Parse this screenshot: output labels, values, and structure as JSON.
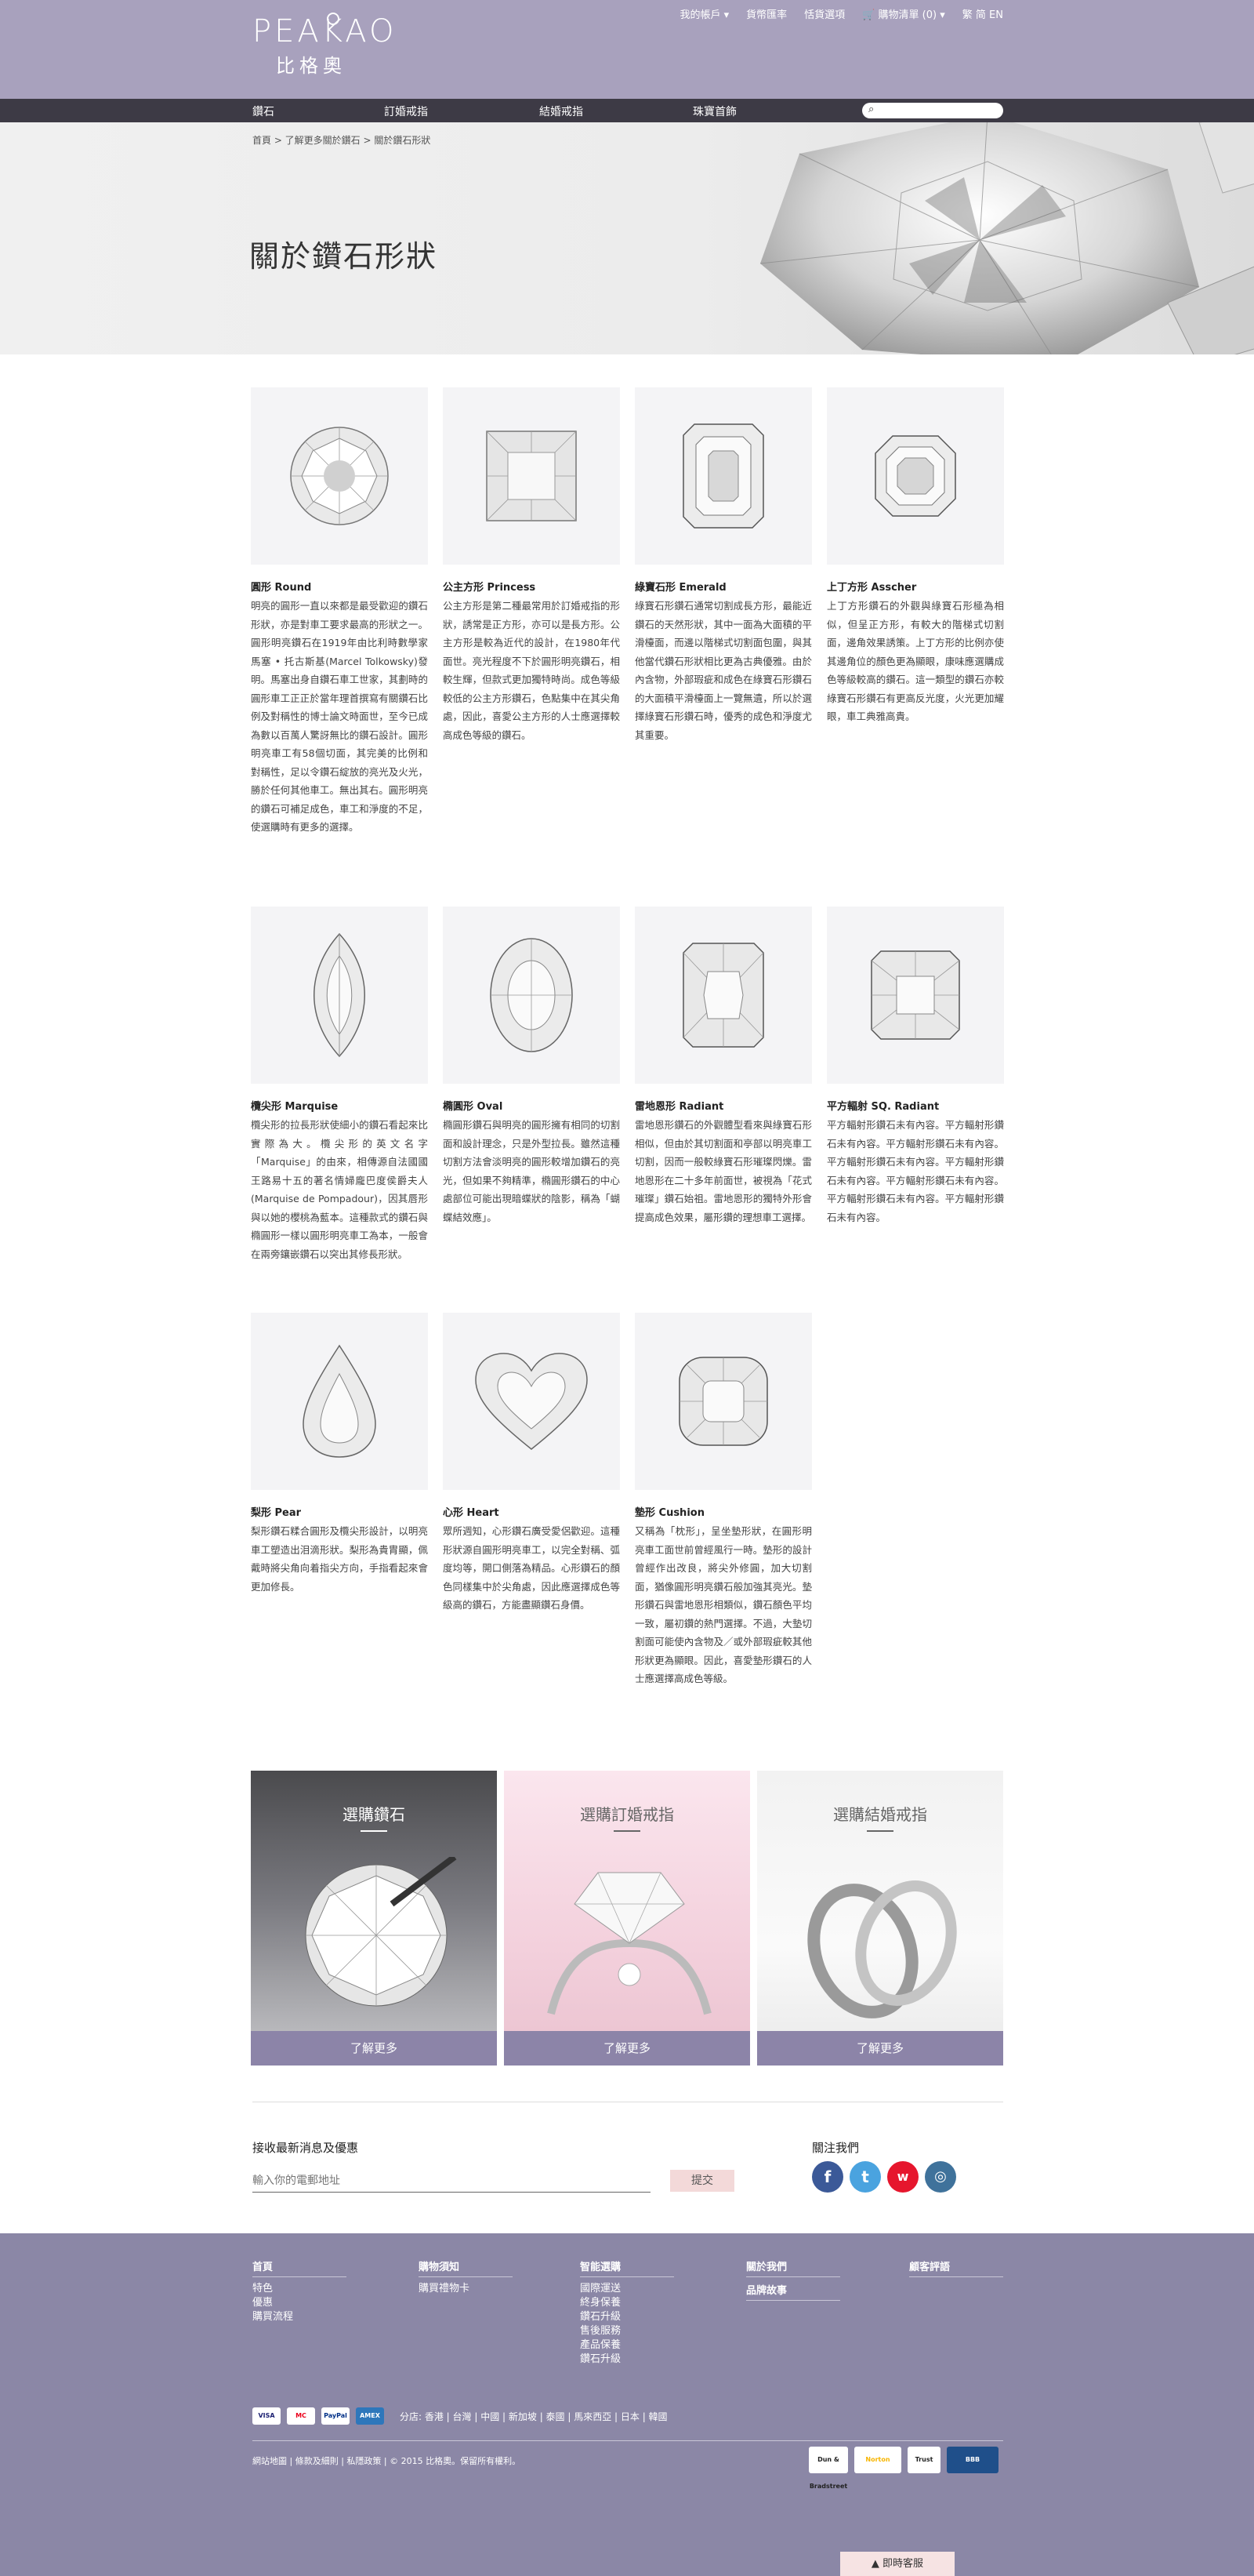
{
  "header": {
    "logo_en": "PEAKAO",
    "logo_cn": "比格奧",
    "toplinks": {
      "account": "我的帳戶 ▾",
      "help": "貨幣匯率",
      "chat": "恬貨選項",
      "cart": "購物清單 (0) ▾",
      "lang_zh": "繁",
      "lang_cn": "简",
      "lang_en": "EN"
    }
  },
  "nav": {
    "items": [
      "鑽石",
      "訂婚戒指",
      "結婚戒指",
      "珠寶首飾"
    ],
    "search_placeholder": ""
  },
  "hero": {
    "breadcrumb": "首頁  >  了解更多關於鑽石  >  關於鑽石形狀",
    "title": "關於鑽石形狀"
  },
  "shapes": [
    {
      "title": "圓形 Round",
      "desc": "明亮的圓形一直以來都是最受歡迎的鑽石形狀，亦是對車工要求最高的形狀之一。圓形明亮鑽石在1919年由比利時數學家馬塞 • 托古斯基(Marcel Tolkowsky)發明。馬塞出身自鑽石車工世家，其劃時的圓形車工正正於當年理首撰寫有關鑽石比例及對稱性的博士論文時面世，至今已成為數以百萬人驚訝無比的鑽石設計。圓形明亮車工有58個切面，其完美的比例和對稱性，足以令鑽石綻放的亮光及火光，勝於任何其他車工。無出其右。圓形明亮的鑽石可補足成色，車工和淨度的不足，使選購時有更多的選擇。",
      "icon": "round-diamond"
    },
    {
      "title": "公主方形 Princess",
      "desc": "公主方形是第二種最常用於訂婚戒指的形狀，誘常是正方形，亦可以是長方形。公主方形是較為近代的設計，在1980年代面世。亮光程度不下於圓形明亮鑽石，相較生輝，但款式更加獨特時尚。成色等級較低的公主方形鑽石，色點集中在其尖角處，因此，喜愛公主方形的人士應選擇較高成色等級的鑽石。",
      "icon": "princess-diamond"
    },
    {
      "title": "綠寶石形 Emerald",
      "desc": "綠寶石形鑽石通常切割成長方形，最能近鑽石的天然形狀，其中一面為大面積的平滑檯面，而邊以階梯式切割面包圍，與其他當代鑽石形狀相比更為古典優雅。由於內含物，外部瑕疵和成色在綠寶石形鑽石的大面積平滑檯面上一覽無遺，所以於選擇綠寶石形鑽石時，優秀的成色和淨度尤其重要。",
      "icon": "emerald-diamond"
    },
    {
      "title": "上丁方形 Asscher",
      "desc": "上丁方形鑽石的外觀與綠寶石形極為相似，但呈正方形，有較大的階梯式切割面，邊角效果誘策。上丁方形的比例亦使其邊角位的顏色更為顯眼，康味應選購成色等級較高的鑽石。這一類型的鑽石亦較綠寶石形鑽石有更高反光度，火光更加耀眼，車工典雅高貴。",
      "icon": "asscher-diamond"
    },
    {
      "title": "欖尖形 Marquise",
      "desc": "欖尖形的拉長形狀使細小的鑽石看起來比實際為大。欖尖形的英文名字「Marquise」的由來，相傳源自法國國王路易十五的著名情婦龐巴度侯爵夫人(Marquise de Pompadour)，因其唇形與以她的櫻桃為藍本。這種款式的鑽石與橢圓形一樣以圓形明亮車工為本，一般會在兩旁鑲嵌鑽石以突出其修長形狀。",
      "icon": "marquise-diamond"
    },
    {
      "title": "橢圓形 Oval",
      "desc": "橢圓形鑽石與明亮的圓形擁有相同的切割面和設計理念，只是外型拉長。雖然這種切割方法會淡明亮的圓形較增加鑽石的亮光，但如果不夠精準，橢圓形鑽石的中心處部位可能出現暗蝶狀的陰影，稱為「蝴蝶結效應」。",
      "icon": "oval-diamond"
    },
    {
      "title": "雷地恩形 Radiant",
      "desc": "雷地恩形鑽石的外觀體型看來與綠寶石形相似，但由於其切割面和亭部以明亮車工切割，因而一般較綠寶石形璀璨閃爍。雷地恩形在二十多年前面世，被視為「花式璀璨」鑽石始祖。雷地恩形的獨特外形會提高成色效果，屬形鑽的理想車工選擇。",
      "icon": "radiant-diamond"
    },
    {
      "title": "平方輻射 SQ. Radiant",
      "desc": "平方輻射形鑽石未有內容。平方輻射形鑽石未有內容。平方輻射形鑽石未有內容。平方輻射形鑽石未有內容。平方輻射形鑽石未有內容。平方輻射形鑽石未有內容。平方輻射形鑽石未有內容。平方輻射形鑽石未有內容。",
      "icon": "sq-radiant-diamond"
    },
    {
      "title": "梨形 Pear",
      "desc": "梨形鑽石糅合圓形及欖尖形設計，以明亮車工塑造出泪滴形狀。梨形為貴胄顯，佩戴時將尖角向着指尖方向，手指看起來會更加修長。",
      "icon": "pear-diamond"
    },
    {
      "title": "心形 Heart",
      "desc": "眾所週知，心形鑽石廣受愛侶歡迎。這種形狀源自圓形明亮車工，以完全對稱、弧度均等，開口側落為精品。心形鑽石的顏色同樣集中於尖角處，因此應選擇成色等級高的鑽石，方能盡顯鑽石身價。",
      "icon": "heart-diamond"
    },
    {
      "title": "墊形 Cushion",
      "desc": "又稱為「枕形」，呈坐墊形狀，在圓形明亮車工面世前曾經風行一時。墊形的設計曾經作出改良，將尖外修圓，加大切割面，猶像圓形明亮鑽石般加強其亮光。墊形鑽石與雷地恩形相類似，鑽石顏色平均一致，屬初鑽的熱門選擇。不過，大墊切割面可能使內含物及／或外部瑕疵較其他形狀更為顯眼。因此，喜愛墊形鑽石的人士應選擇高成色等級。",
      "icon": "cushion-diamond"
    }
  ],
  "promos": [
    {
      "title": "選購鑽石",
      "button": "了解更多"
    },
    {
      "title": "選購訂婚戒指",
      "button": "了解更多"
    },
    {
      "title": "選購結婚戒指",
      "button": "了解更多"
    }
  ],
  "newsletter": {
    "title": "接收最新消息及優惠",
    "placeholder": "輸入你的電郵地址",
    "submit": "提交",
    "follow_title": "關注我們",
    "socials": [
      "facebook-icon",
      "twitter-icon",
      "weibo-icon",
      "instagram-icon"
    ]
  },
  "footer": {
    "columns": [
      {
        "title": "首頁",
        "items": [
          "特色",
          "優惠",
          "購買流程"
        ]
      },
      {
        "title": "購物須知",
        "items": [
          "購買禮物卡"
        ]
      },
      {
        "title": "智能選購",
        "items": [
          "國際運送",
          "終身保養",
          "鑽石升級",
          "售後服務",
          "產品保養",
          "鑽石升級"
        ]
      },
      {
        "title": "關於我們",
        "items": []
      },
      {
        "title": "顧客評語",
        "items": []
      }
    ],
    "col4_extra": "品牌故事",
    "payments": [
      "VISA",
      "MC",
      "PayPal",
      "AMEX"
    ],
    "branches": "分店: 香港 | 台灣 | 中國 | 新加坡 | 泰國 | 馬來西亞 | 日本 | 韓國",
    "copyright": "網站地圖 | 條款及細則 | 私隱政策 | © 2015 比格奧。保留所有權利。",
    "badges": [
      "Dun & Bradstreet",
      "Norton",
      "Trust",
      "BBB"
    ],
    "chat": "▲ 即時客服"
  },
  "colors": {
    "header_bg": "#a8a1bd",
    "nav_bg": "#3d3a45",
    "promo_button": "#8c84a8",
    "footer_bg": "#8b87a6",
    "submit_btn": "#f3d9d9"
  }
}
